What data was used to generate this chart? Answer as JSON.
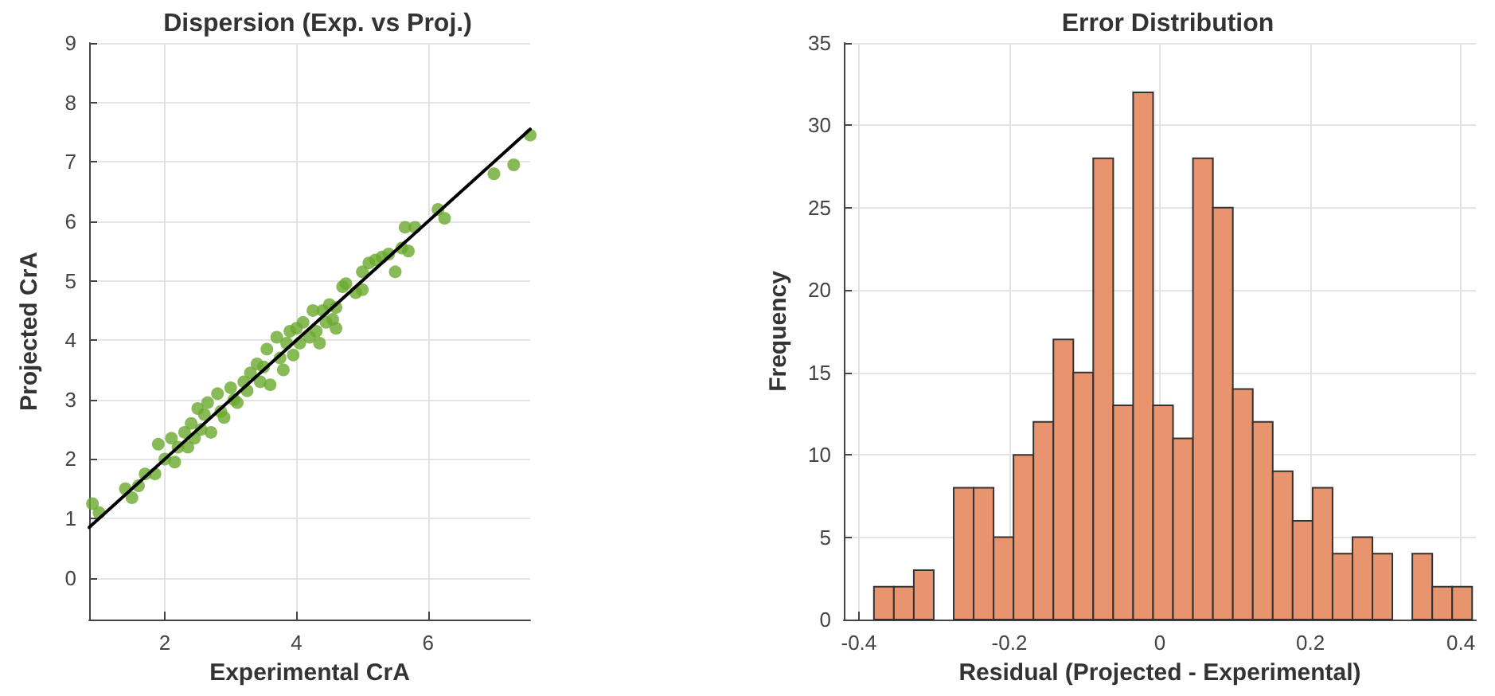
{
  "chart_data": [
    {
      "type": "scatter",
      "title": "Dispersion (Exp. vs Proj.)",
      "xlabel": "Experimental CrA",
      "ylabel": "Projected CrA",
      "xlim": [
        0.85,
        7.55
      ],
      "xticks": [
        2,
        4,
        6
      ],
      "ylim": [
        -0.7,
        9
      ],
      "yticks": [
        0,
        1,
        2,
        3,
        4,
        5,
        6,
        7,
        8,
        9
      ],
      "grid": true,
      "series": [
        {
          "type": "scatter",
          "marker": "circle",
          "color": "#6aaa2e",
          "x": [
            0.9,
            1.0,
            1.4,
            1.5,
            1.6,
            1.7,
            1.85,
            1.9,
            2.0,
            2.1,
            2.15,
            2.2,
            2.3,
            2.35,
            2.4,
            2.45,
            2.5,
            2.55,
            2.6,
            2.65,
            2.7,
            2.8,
            2.85,
            2.9,
            3.0,
            3.05,
            3.1,
            3.2,
            3.25,
            3.3,
            3.4,
            3.45,
            3.5,
            3.55,
            3.6,
            3.7,
            3.75,
            3.8,
            3.85,
            3.9,
            3.95,
            4.0,
            4.05,
            4.1,
            4.2,
            4.25,
            4.3,
            4.35,
            4.4,
            4.45,
            4.5,
            4.55,
            4.6,
            4.6,
            4.7,
            4.75,
            4.9,
            5.0,
            5.0,
            5.1,
            5.2,
            5.3,
            5.4,
            5.5,
            5.6,
            5.7,
            5.65,
            5.8,
            6.15,
            6.25,
            7.0,
            7.3,
            7.55
          ],
          "values": [
            1.25,
            1.1,
            1.5,
            1.35,
            1.55,
            1.75,
            1.75,
            2.25,
            2.0,
            2.35,
            1.95,
            2.2,
            2.45,
            2.2,
            2.6,
            2.35,
            2.85,
            2.5,
            2.75,
            2.95,
            2.45,
            3.1,
            2.8,
            2.7,
            3.2,
            3.0,
            2.95,
            3.3,
            3.15,
            3.45,
            3.6,
            3.3,
            3.55,
            3.85,
            3.25,
            4.05,
            3.7,
            3.5,
            3.95,
            4.15,
            3.75,
            4.2,
            3.95,
            4.3,
            4.05,
            4.5,
            4.15,
            3.95,
            4.5,
            4.3,
            4.6,
            4.35,
            4.55,
            4.2,
            4.9,
            4.95,
            4.8,
            4.85,
            5.15,
            5.3,
            5.35,
            5.4,
            5.45,
            5.15,
            5.55,
            5.5,
            5.9,
            5.9,
            6.2,
            6.05,
            6.8,
            6.95,
            7.45
          ]
        },
        {
          "type": "line",
          "marker": "none",
          "color": "#000000",
          "line_style": "solid",
          "x": [
            0.85,
            7.55
          ],
          "values": [
            0.85,
            7.55
          ]
        }
      ]
    },
    {
      "type": "histogram",
      "title": "Error Distribution",
      "xlabel": "Residual (Projected - Experimental)",
      "ylabel": "Frequency",
      "color": "#e8946e",
      "xlim": [
        -0.42,
        0.42
      ],
      "xticks": [
        -0.4,
        -0.2,
        0,
        0.2,
        0.4
      ],
      "ylim": [
        0,
        35
      ],
      "yticks": [
        0,
        5,
        10,
        15,
        20,
        25,
        30,
        35
      ],
      "grid": true,
      "bins": [
        -0.38,
        -0.3535,
        -0.327,
        -0.3005,
        -0.274,
        -0.2475,
        -0.221,
        -0.1945,
        -0.168,
        -0.1415,
        -0.115,
        -0.0885,
        -0.062,
        -0.0355,
        -0.009,
        0.0175,
        0.044,
        0.0705,
        0.097,
        0.1235,
        0.15,
        0.1765,
        0.203,
        0.2295,
        0.256,
        0.2825,
        0.309,
        0.3355,
        0.362,
        0.3885,
        0.415
      ],
      "values": [
        2,
        2,
        3,
        0,
        8,
        8,
        5,
        10,
        12,
        17,
        15,
        28,
        13,
        32,
        13,
        11,
        28,
        25,
        14,
        12,
        9,
        6,
        8,
        4,
        5,
        4,
        0,
        4,
        2,
        2
      ]
    }
  ]
}
